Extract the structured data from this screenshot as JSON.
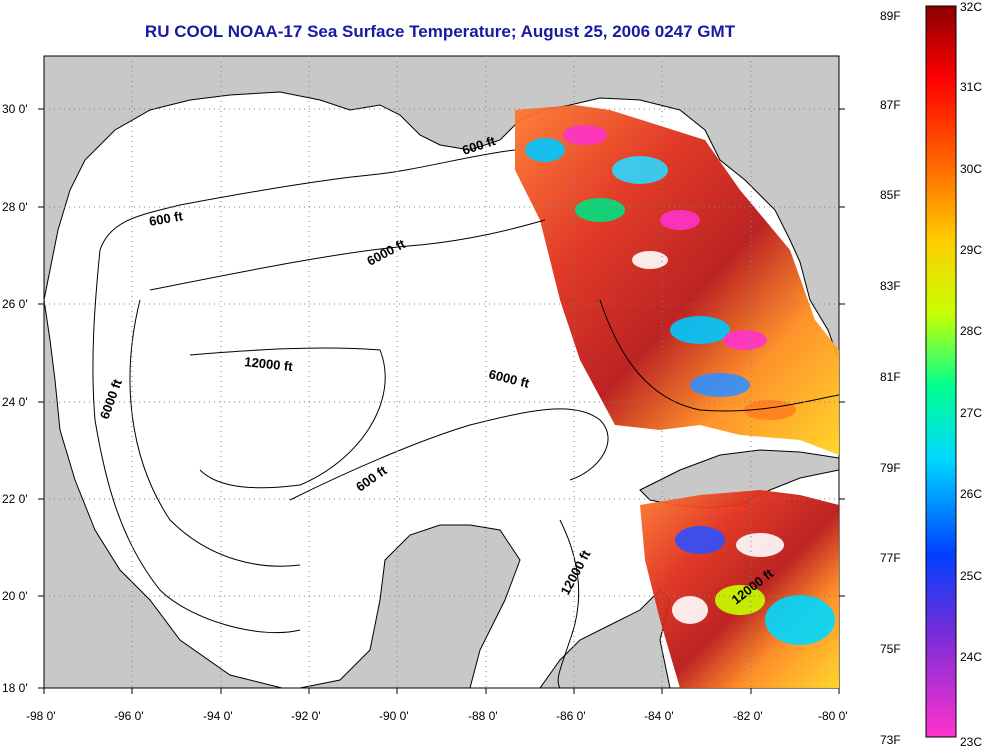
{
  "title": "RU COOL  NOAA-17  Sea Surface Temperature;  August 25, 2006 0247 GMT",
  "map": {
    "lon_range": [
      -98,
      -80
    ],
    "lat_range": [
      18,
      31
    ],
    "lat_ticks": [
      "30 0'",
      "28 0'",
      "26 0'",
      "24 0'",
      "22 0'",
      "20 0'",
      "18 0'"
    ],
    "lon_ticks": [
      "-98 0'",
      "-96 0'",
      "-94 0'",
      "-92 0'",
      "-90 0'",
      "-88 0'",
      "-86 0'",
      "-84 0'",
      "-82 0'",
      "-80 0'"
    ],
    "contour_labels": [
      {
        "text": "600 ft"
      },
      {
        "text": "600 ft"
      },
      {
        "text": "6000 ft"
      },
      {
        "text": "12000 ft"
      },
      {
        "text": "6000 ft"
      },
      {
        "text": "6000 ft"
      },
      {
        "text": "600 ft"
      },
      {
        "text": "12000 ft"
      },
      {
        "text": "12000 ft"
      }
    ],
    "colors": {
      "land": "#c8c8c8",
      "water": "#ffffff",
      "grid": "#808080"
    }
  },
  "colorbar": {
    "fahrenheit_labels": [
      "89F",
      "87F",
      "85F",
      "83F",
      "81F",
      "79F",
      "77F",
      "75F",
      "73F"
    ],
    "celsius_labels": [
      "32C",
      "31C",
      "30C",
      "29C",
      "28C",
      "27C",
      "26C",
      "25C",
      "24C",
      "23C"
    ],
    "range_c": [
      23,
      32
    ],
    "range_f": [
      73,
      89.6
    ]
  }
}
